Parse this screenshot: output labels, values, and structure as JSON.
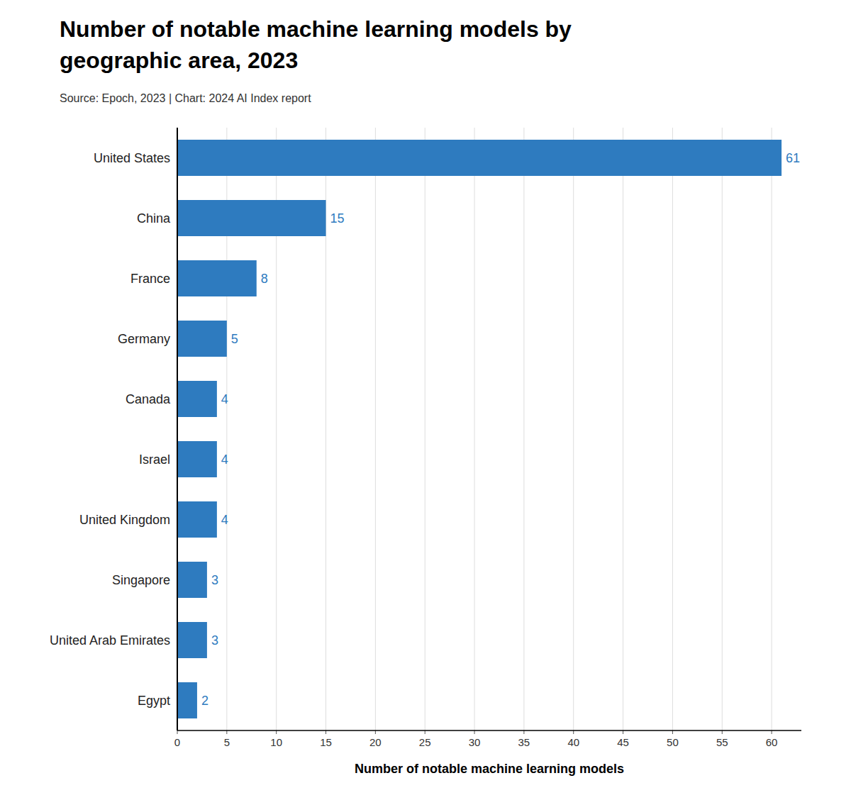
{
  "chart_data": {
    "type": "bar",
    "orientation": "horizontal",
    "title": [
      "Number of notable machine learning models by",
      "geographic area, 2023"
    ],
    "subtitle": "Source: Epoch, 2023 | Chart: 2024 AI Index report",
    "xlabel": "Number of notable machine learning models",
    "categories": [
      "United States",
      "China",
      "France",
      "Germany",
      "Canada",
      "Israel",
      "United Kingdom",
      "Singapore",
      "United Arab Emirates",
      "Egypt"
    ],
    "values": [
      61,
      15,
      8,
      5,
      4,
      4,
      4,
      3,
      3,
      2
    ],
    "color": "#2e7bbf",
    "xlim": [
      0,
      63
    ],
    "xticks": [
      0,
      5,
      10,
      15,
      20,
      25,
      30,
      35,
      40,
      45,
      50,
      55,
      60
    ],
    "grid": true,
    "data_labels": true
  }
}
